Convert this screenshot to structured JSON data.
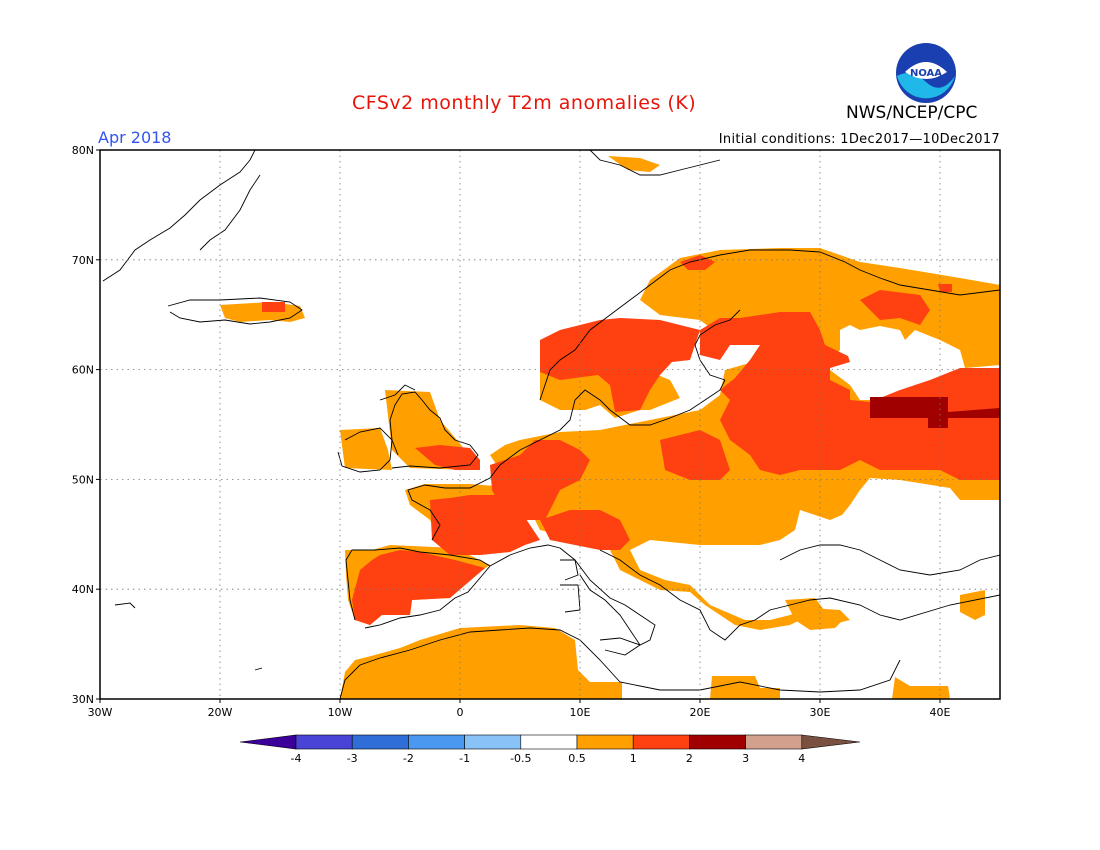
{
  "title": "CFSv2 monthly T2m anomalies (K)",
  "org": "NWS/NCEP/CPC",
  "logo_text": "NOAA",
  "month": "Apr 2018",
  "initial_conditions": "Initial conditions: 1Dec2017—10Dec2017",
  "lat_labels": [
    "80N",
    "70N",
    "60N",
    "50N",
    "40N",
    "30N"
  ],
  "lon_labels": [
    "30W",
    "20W",
    "10W",
    "0",
    "10E",
    "20E",
    "30E",
    "40E"
  ],
  "colorbar": {
    "ticks": [
      "-4",
      "-3",
      "-2",
      "-1",
      "-0.5",
      "0.5",
      "1",
      "2",
      "3",
      "4"
    ],
    "colors": [
      "#3a0099",
      "#4a44d6",
      "#2f6ed8",
      "#4a98f0",
      "#88c2f6",
      "#ffffff",
      "#ffa000",
      "#ff4010",
      "#a00000",
      "#d2a08c",
      "#7a5040"
    ]
  },
  "colors": {
    "orange": "#ffa000",
    "red": "#ff4010",
    "darkred": "#a00000"
  }
}
